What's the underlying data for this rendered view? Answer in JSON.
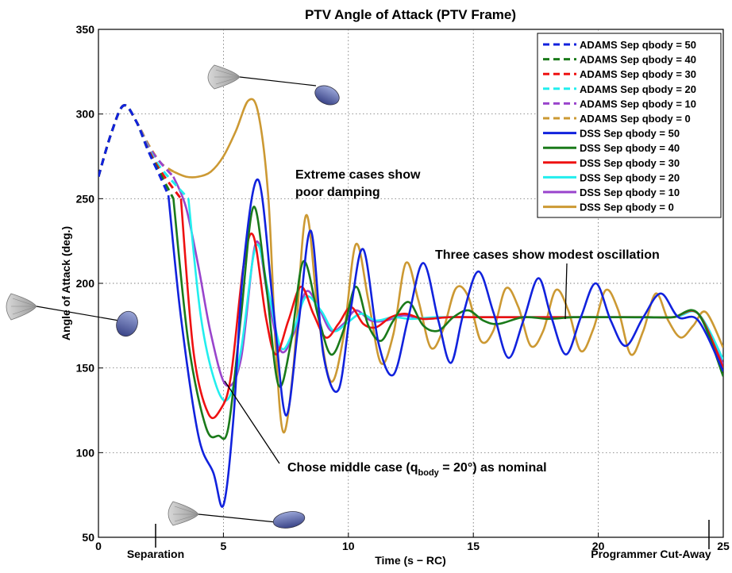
{
  "chart_data": {
    "type": "line",
    "title": "PTV Angle of Attack (PTV Frame)",
    "xlabel": "Time (s − RC)",
    "ylabel": "Angle of Attack (deg.)",
    "xlim": [
      0,
      25
    ],
    "ylim": [
      50,
      350
    ],
    "xticks": [
      0,
      5,
      10,
      15,
      20,
      25
    ],
    "yticks": [
      50,
      100,
      150,
      200,
      250,
      300,
      350
    ],
    "grid": true,
    "legend_position": "top-right",
    "colors": {
      "q50": "#1122dd",
      "q40": "#1a7a1a",
      "q30": "#ee1111",
      "q20": "#22eeee",
      "q10": "#9944cc",
      "q0": "#cc9933"
    },
    "series": [
      {
        "name": "ADAMS Sep qbody = 50",
        "style": "dashed",
        "color_key": "q50",
        "x": [
          0,
          0.5,
          1,
          1.5,
          2,
          2.5,
          2.8
        ],
        "y": [
          263,
          288,
          305,
          296,
          278,
          262,
          252
        ]
      },
      {
        "name": "ADAMS Sep qbody = 40",
        "style": "dashed",
        "color_key": "q40",
        "x": [
          0,
          0.5,
          1,
          1.5,
          2,
          2.5,
          3.0
        ],
        "y": [
          263,
          288,
          305,
          296,
          278,
          264,
          250
        ]
      },
      {
        "name": "ADAMS Sep qbody = 30",
        "style": "dashed",
        "color_key": "q30",
        "x": [
          0,
          0.5,
          1,
          1.5,
          2,
          2.5,
          3.3
        ],
        "y": [
          263,
          288,
          305,
          296,
          279,
          266,
          250
        ]
      },
      {
        "name": "ADAMS Sep qbody = 20",
        "style": "dashed",
        "color_key": "q20",
        "x": [
          0,
          0.5,
          1,
          1.5,
          2,
          2.5,
          3.6
        ],
        "y": [
          263,
          288,
          305,
          296,
          280,
          268,
          250
        ]
      },
      {
        "name": "ADAMS Sep qbody = 10",
        "style": "dashed",
        "color_key": "q10",
        "x": [
          0,
          0.5,
          1,
          1.5,
          2,
          2.5,
          3.0
        ],
        "y": [
          263,
          288,
          305,
          296,
          281,
          271,
          263
        ]
      },
      {
        "name": "ADAMS Sep qbody = 0",
        "style": "dashed",
        "color_key": "q0",
        "x": [
          0,
          0.5,
          1,
          1.5,
          2,
          2.5,
          3.0
        ],
        "y": [
          263,
          288,
          305,
          296,
          282,
          271,
          266
        ]
      },
      {
        "name": "DSS Sep qbody = 50",
        "style": "solid",
        "color_key": "q50",
        "x": [
          2.8,
          3.3,
          4.0,
          4.6,
          5.0,
          5.4,
          5.8,
          6.4,
          7.0,
          7.5,
          8.0,
          8.5,
          9.0,
          9.6,
          10.1,
          10.6,
          11.2,
          11.8,
          12.4,
          13.0,
          13.6,
          14.1,
          14.6,
          15.2,
          15.8,
          16.4,
          17.0,
          17.6,
          18.1,
          18.7,
          19.3,
          19.9,
          20.5,
          21.1,
          21.8,
          22.5,
          23.2,
          24.0,
          25.0
        ],
        "y": [
          252,
          180,
          110,
          88,
          69,
          120,
          210,
          261,
          185,
          122,
          175,
          231,
          158,
          137,
          185,
          220,
          165,
          146,
          180,
          212,
          178,
          153,
          182,
          207,
          183,
          156,
          178,
          203,
          181,
          158,
          180,
          200,
          178,
          163,
          180,
          194,
          180,
          178,
          148
        ]
      },
      {
        "name": "DSS Sep qbody = 40",
        "style": "solid",
        "color_key": "q40",
        "x": [
          3.0,
          3.6,
          4.3,
          4.8,
          5.2,
          5.7,
          6.2,
          6.7,
          7.2,
          7.7,
          8.2,
          8.8,
          9.3,
          9.8,
          10.3,
          10.8,
          11.3,
          11.8,
          12.4,
          13.0,
          13.6,
          14.2,
          14.8,
          15.4,
          16.0,
          17.0,
          18.0,
          19.0,
          20.0,
          21.0,
          22.0,
          23.0,
          24.0,
          25.0
        ],
        "y": [
          250,
          165,
          115,
          110,
          115,
          180,
          245,
          200,
          140,
          165,
          213,
          180,
          158,
          172,
          198,
          175,
          166,
          178,
          189,
          175,
          172,
          180,
          184,
          178,
          176,
          180,
          179,
          180,
          180,
          180,
          180,
          180,
          182,
          145
        ]
      },
      {
        "name": "DSS Sep qbody = 30",
        "style": "solid",
        "color_key": "q30",
        "x": [
          3.3,
          3.8,
          4.4,
          4.9,
          5.3,
          5.8,
          6.2,
          6.7,
          7.1,
          7.6,
          8.1,
          8.6,
          9.1,
          9.6,
          10.1,
          10.6,
          11.1,
          11.7,
          12.3,
          13.0,
          14.0,
          15.0,
          16.0,
          17.0,
          18.0,
          19.0,
          20.0,
          21.0,
          22.0,
          23.0,
          24.0,
          25.0
        ],
        "y": [
          250,
          160,
          123,
          126,
          145,
          210,
          228,
          180,
          158,
          178,
          198,
          182,
          168,
          176,
          186,
          176,
          174,
          180,
          182,
          179,
          180,
          180,
          180,
          180,
          180,
          180,
          180,
          180,
          180,
          180,
          182,
          150
        ]
      },
      {
        "name": "DSS Sep qbody = 20",
        "style": "solid",
        "color_key": "q20",
        "x": [
          3.6,
          4.1,
          4.7,
          5.2,
          5.7,
          6.3,
          6.8,
          7.3,
          7.8,
          8.3,
          8.9,
          9.4,
          9.9,
          10.5,
          11.1,
          11.8,
          12.5,
          13.5,
          14.5,
          15.5,
          17.0,
          19.0,
          21.0,
          23.0,
          24.0,
          25.0
        ],
        "y": [
          250,
          180,
          140,
          132,
          160,
          222,
          195,
          162,
          172,
          192,
          184,
          172,
          176,
          182,
          178,
          180,
          179,
          180,
          180,
          180,
          180,
          180,
          180,
          180,
          182,
          155
        ]
      },
      {
        "name": "DSS Sep qbody = 10",
        "style": "solid",
        "color_key": "q10",
        "x": [
          3.0,
          3.5,
          4.0,
          4.5,
          5.1,
          5.7,
          6.3,
          6.8,
          7.3,
          7.8,
          8.3,
          8.8,
          9.3,
          9.8,
          10.3,
          10.9,
          11.5,
          12.2,
          13.0,
          14.0,
          15.0,
          17.0,
          19.0,
          21.0,
          23.0,
          24.0,
          25.0
        ],
        "y": [
          263,
          245,
          210,
          170,
          140,
          155,
          224,
          190,
          160,
          170,
          195,
          186,
          172,
          176,
          184,
          178,
          178,
          181,
          179,
          180,
          180,
          180,
          180,
          180,
          180,
          182,
          152
        ]
      },
      {
        "name": "DSS Sep qbody = 0",
        "style": "solid",
        "color_key": "q0",
        "x": [
          3.0,
          3.5,
          4.0,
          4.5,
          5.0,
          5.5,
          6.0,
          6.4,
          6.8,
          7.1,
          7.4,
          7.8,
          8.3,
          8.8,
          9.3,
          9.8,
          10.3,
          10.8,
          11.3,
          11.8,
          12.3,
          12.8,
          13.3,
          13.8,
          14.3,
          14.8,
          15.3,
          15.8,
          16.3,
          16.8,
          17.3,
          17.8,
          18.3,
          18.8,
          19.3,
          19.8,
          20.3,
          20.8,
          21.3,
          21.8,
          22.3,
          22.8,
          23.3,
          23.8,
          24.3,
          25.0
        ],
        "y": [
          266,
          263,
          263,
          266,
          275,
          290,
          308,
          300,
          250,
          160,
          112,
          150,
          240,
          180,
          142,
          168,
          223,
          190,
          153,
          170,
          212,
          190,
          162,
          173,
          197,
          192,
          166,
          172,
          197,
          186,
          163,
          172,
          196,
          184,
          160,
          173,
          196,
          184,
          158,
          172,
          194,
          178,
          168,
          175,
          183,
          162
        ]
      }
    ]
  },
  "annotations": {
    "extreme_line1": "Extreme cases show",
    "extreme_line2": "poor damping",
    "modest": "Three cases show modest oscillation",
    "middle_prefix": "Chose middle case (q",
    "middle_sub": "body",
    "middle_suffix": " = 20°)  as nominal",
    "separation": "Separation",
    "cutaway": "Programmer Cut-Away"
  }
}
